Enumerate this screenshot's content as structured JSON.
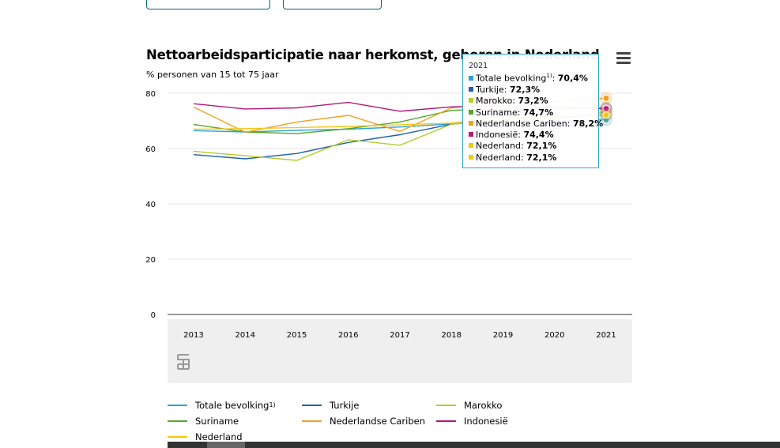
{
  "chart_data": {
    "type": "line",
    "title": "Nettoarbeidsparticipatie naar herkomst, geboren in Nederland",
    "subtitle": "% personen van 15 tot 75 jaar",
    "x": [
      "2013",
      "2014",
      "2015",
      "2016",
      "2017",
      "2018",
      "2019",
      "2020",
      "2021"
    ],
    "ylim": [
      0,
      80
    ],
    "yticks": [
      "0",
      "20",
      "40",
      "60",
      "80"
    ],
    "grid": true,
    "legend_position": "bottom",
    "series": [
      {
        "name": "Totale bevolking",
        "sup": "1)",
        "color": "#29a3d6",
        "values": [
          66.5,
          66.0,
          66.6,
          67.0,
          67.8,
          68.9,
          69.8,
          70.1,
          70.4
        ]
      },
      {
        "name": "Turkije",
        "sup": "",
        "color": "#1f5fad",
        "values": [
          57.8,
          56.3,
          58.2,
          62.2,
          65.0,
          68.8,
          70.5,
          70.9,
          72.3
        ]
      },
      {
        "name": "Marokko",
        "sup": "",
        "color": "#b5cc2e",
        "values": [
          59.0,
          57.4,
          55.7,
          63.2,
          61.2,
          68.8,
          70.4,
          71.0,
          73.2
        ]
      },
      {
        "name": "Suriname",
        "sup": "",
        "color": "#55a630",
        "values": [
          68.7,
          66.0,
          65.4,
          67.2,
          69.6,
          73.8,
          74.5,
          74.2,
          74.7
        ]
      },
      {
        "name": "Nederlandse Cariben",
        "sup": "",
        "color": "#f0a020",
        "values": [
          75.0,
          65.9,
          69.6,
          72.0,
          66.2,
          74.7,
          76.8,
          77.0,
          78.2
        ]
      },
      {
        "name": "Indonesië",
        "sup": "",
        "color": "#b5177a",
        "values": [
          76.2,
          74.3,
          74.7,
          76.7,
          73.5,
          75.1,
          75.4,
          74.8,
          74.4
        ]
      },
      {
        "name": "Nederland",
        "sup": "",
        "color": "#f5c710",
        "values": [
          67.0,
          67.2,
          67.6,
          68.0,
          68.6,
          69.2,
          71.5,
          71.6,
          72.1
        ]
      }
    ]
  },
  "tooltip": {
    "year": "2021",
    "rows": [
      {
        "label": "Totale bevolking",
        "sup": "1)",
        "value": "70,4%",
        "color": "#29a3d6"
      },
      {
        "label": "Turkije",
        "sup": "",
        "value": "72,3%",
        "color": "#1f5fad"
      },
      {
        "label": "Marokko",
        "sup": "",
        "value": "73,2%",
        "color": "#b5cc2e"
      },
      {
        "label": "Suriname",
        "sup": "",
        "value": "74,7%",
        "color": "#55a630"
      },
      {
        "label": "Nederlandse Cariben",
        "sup": "",
        "value": "78,2%",
        "color": "#f0a020"
      },
      {
        "label": "Indonesië",
        "sup": "",
        "value": "74,4%",
        "color": "#b5177a"
      },
      {
        "label": "Nederland",
        "sup": "",
        "value": "72,1%",
        "color": "#f5c710"
      },
      {
        "label": "Nederland",
        "sup": "",
        "value": "72,1%",
        "color": "#f5c710"
      }
    ]
  },
  "menu_icon": "hamburger-menu-icon",
  "logo_icon": "cbs-logo-icon"
}
